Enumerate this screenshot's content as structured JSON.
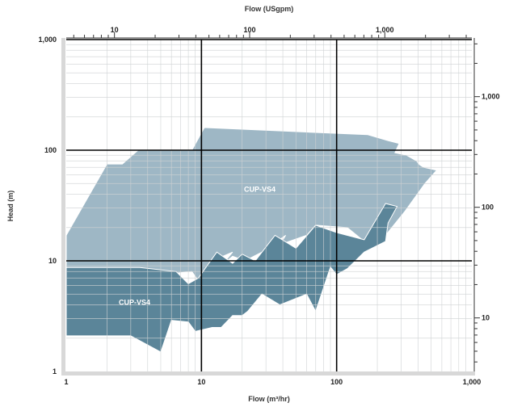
{
  "chart_data": {
    "type": "area",
    "title": "",
    "xlabel": "Flow (m³/hr)",
    "ylabel": "Head (m)",
    "x2label": "Flow (USgpm)",
    "xscale": "log",
    "yscale": "log",
    "xlim": [
      1,
      1000
    ],
    "ylim": [
      1,
      1000
    ],
    "x2lim": [
      4.4,
      4403
    ],
    "y2lim": [
      3.28,
      3281
    ],
    "grid": true,
    "x_ticks": [
      {
        "v": 1,
        "label": "1"
      },
      {
        "v": 10,
        "label": "10"
      },
      {
        "v": 100,
        "label": "100"
      },
      {
        "v": 1000,
        "label": "1,000"
      }
    ],
    "y_ticks": [
      {
        "v": 1,
        "label": "1"
      },
      {
        "v": 10,
        "label": "10"
      },
      {
        "v": 100,
        "label": "100"
      },
      {
        "v": 1000,
        "label": "1,000"
      }
    ],
    "x2_ticks": [
      {
        "v": 10,
        "label": "10"
      },
      {
        "v": 100,
        "label": "100"
      },
      {
        "v": 1000,
        "label": "1,000"
      }
    ],
    "y2_ticks": [
      {
        "v": 10,
        "label": "10"
      },
      {
        "v": 100,
        "label": "100"
      },
      {
        "v": 1000,
        "label": "1,000"
      }
    ],
    "series": [
      {
        "name": "CUP-VS4",
        "color": "#9eb7c5",
        "label_pos": [
          27,
          42
        ],
        "points": [
          [
            1,
            17
          ],
          [
            2,
            75
          ],
          [
            2.6,
            75
          ],
          [
            3.4,
            100
          ],
          [
            8.5,
            100
          ],
          [
            10.5,
            160
          ],
          [
            170,
            138
          ],
          [
            240,
            122
          ],
          [
            290,
            115
          ],
          [
            270,
            95
          ],
          [
            330,
            90
          ],
          [
            390,
            80
          ],
          [
            410,
            74
          ],
          [
            440,
            70
          ],
          [
            550,
            66
          ],
          [
            450,
            50
          ],
          [
            320,
            28
          ],
          [
            230,
            17
          ],
          [
            160,
            15
          ],
          [
            120,
            20
          ],
          [
            70,
            21
          ],
          [
            60,
            17
          ],
          [
            38,
            14
          ],
          [
            42,
            17
          ],
          [
            28,
            12
          ],
          [
            21,
            10
          ],
          [
            17,
            11
          ],
          [
            14,
            9
          ],
          [
            17,
            12
          ],
          [
            12,
            10
          ],
          [
            10,
            6
          ],
          [
            8.5,
            8
          ],
          [
            5,
            7.5
          ],
          [
            3.5,
            8.2
          ],
          [
            1,
            8.2
          ]
        ]
      },
      {
        "name": "CUP-VS4",
        "color": "#5b8599",
        "label_pos": [
          3.2,
          4
        ],
        "points": [
          [
            1,
            8.7
          ],
          [
            3.5,
            8.7
          ],
          [
            6.5,
            8
          ],
          [
            8,
            6.2
          ],
          [
            9.5,
            7
          ],
          [
            13,
            12
          ],
          [
            17,
            9.5
          ],
          [
            20,
            11.5
          ],
          [
            25,
            10
          ],
          [
            35,
            17
          ],
          [
            50,
            13
          ],
          [
            70,
            21
          ],
          [
            100,
            18
          ],
          [
            160,
            15.5
          ],
          [
            230,
            33
          ],
          [
            280,
            31
          ],
          [
            240,
            22
          ],
          [
            230,
            15
          ],
          [
            160,
            12
          ],
          [
            120,
            8.5
          ],
          [
            100,
            7.5
          ],
          [
            90,
            8.8
          ],
          [
            70,
            3.5
          ],
          [
            60,
            5
          ],
          [
            38,
            4
          ],
          [
            28,
            5
          ],
          [
            22,
            3.5
          ],
          [
            20,
            3.2
          ],
          [
            17,
            3.2
          ],
          [
            14,
            2.5
          ],
          [
            12,
            2.5
          ],
          [
            9,
            2.3
          ],
          [
            8,
            2.8
          ],
          [
            6,
            2.9
          ],
          [
            5,
            1.5
          ],
          [
            3,
            2.1
          ],
          [
            1,
            2.1
          ]
        ]
      }
    ]
  }
}
